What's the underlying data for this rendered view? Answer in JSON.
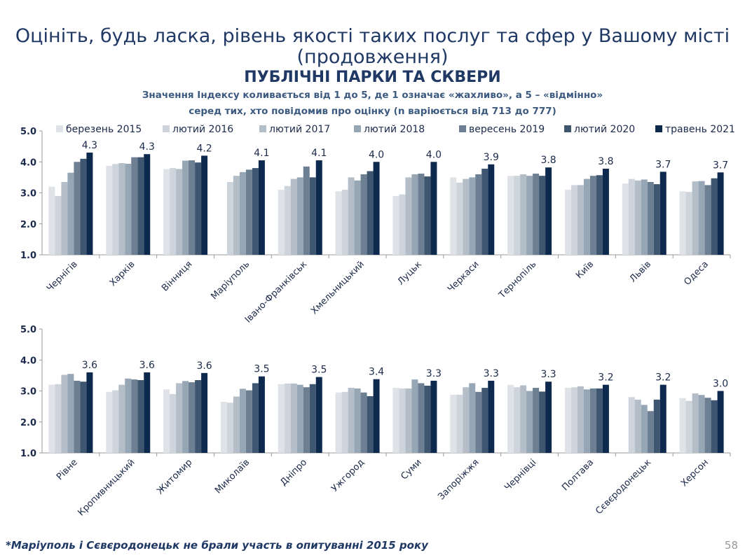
{
  "title_line1": "Оцініть, будь ласка, рівень якості таких послуг та сфер у Вашому місті",
  "title_line2": "(продовження)",
  "section_title": "ПУБЛІЧНІ ПАРКИ ТА СКВЕРИ",
  "subtitle_line1": "Значення Індексу коливається від 1 до 5, де 1 означає «жахливо», а 5 – «відмінно»",
  "subtitle_line2": "серед тих, хто повідомив про оцінку (n варіюється від 713 до 777)",
  "footnote": "*Маріуполь і Сєвєродонецьк не брали участь в опитуванні 2015 року",
  "page_number": "58",
  "chart_data": [
    {
      "type": "bar",
      "ylim": [
        1,
        5
      ],
      "yticks": [
        "1.0",
        "2.0",
        "3.0",
        "4.0",
        "5.0"
      ],
      "legend_position": "top",
      "series_names": [
        "березень 2015",
        "лютий 2016",
        "лютий 2017",
        "лютий 2018",
        "вересень 2019",
        "лютий 2020",
        "травень 2021"
      ],
      "colors": [
        "#dfe3e8",
        "#cdd4dc",
        "#b3bec9",
        "#97a6b5",
        "#6d7f93",
        "#3f5670",
        "#0d2a4e"
      ],
      "categories": [
        "Чернігів",
        "Харків",
        "Вінниця",
        "Маріуполь",
        "Івано-Франківськ",
        "Хмельницький",
        "Луцьк",
        "Черкаси",
        "Тернопіль",
        "Київ",
        "Львів",
        "Одеса"
      ],
      "labels": [
        "4.3",
        "4.3",
        "4.2",
        "4.1",
        "4.1",
        "4.0",
        "4.0",
        "3.9",
        "3.8",
        "3.8",
        "3.7",
        "3.7"
      ],
      "values": [
        [
          3.2,
          2.9,
          3.35,
          3.65,
          4.0,
          4.1,
          4.3
        ],
        [
          3.87,
          3.93,
          3.96,
          3.94,
          4.15,
          4.15,
          4.25
        ],
        [
          3.77,
          3.8,
          3.77,
          4.04,
          4.05,
          3.98,
          4.2
        ],
        [
          null,
          3.35,
          3.55,
          3.67,
          3.75,
          3.8,
          4.05
        ],
        [
          3.1,
          3.22,
          3.45,
          3.5,
          3.85,
          3.5,
          4.05
        ],
        [
          3.05,
          3.1,
          3.5,
          3.4,
          3.6,
          3.7,
          4.0
        ],
        [
          2.9,
          2.95,
          3.5,
          3.6,
          3.62,
          3.53,
          4.0
        ],
        [
          3.5,
          3.33,
          3.45,
          3.5,
          3.6,
          3.78,
          3.92
        ],
        [
          3.55,
          3.55,
          3.6,
          3.55,
          3.62,
          3.55,
          3.82
        ],
        [
          3.1,
          3.25,
          3.25,
          3.45,
          3.55,
          3.57,
          3.78
        ],
        [
          3.3,
          3.45,
          3.4,
          3.43,
          3.35,
          3.28,
          3.68
        ],
        [
          3.05,
          3.03,
          3.37,
          3.38,
          3.25,
          3.47,
          3.66
        ]
      ]
    },
    {
      "type": "bar",
      "ylim": [
        1,
        5
      ],
      "yticks": [
        "1.0",
        "2.0",
        "3.0",
        "4.0",
        "5.0"
      ],
      "categories": [
        "Рівне",
        "Кропивницький",
        "Житомир",
        "Миколаїв",
        "Дніпро",
        "Ужгород",
        "Суми",
        "Запоріжжя",
        "Чернівці",
        "Полтава",
        "Сєвєродонецьк",
        "Херсон"
      ],
      "labels": [
        "3.6",
        "3.6",
        "3.6",
        "3.5",
        "3.5",
        "3.4",
        "3.3",
        "3.3",
        "3.3",
        "3.2",
        "3.2",
        "3.0"
      ],
      "values": [
        [
          3.2,
          3.22,
          3.52,
          3.55,
          3.33,
          3.3,
          3.6
        ],
        [
          2.97,
          3.02,
          3.2,
          3.4,
          3.37,
          3.35,
          3.6
        ],
        [
          3.05,
          2.9,
          3.25,
          3.32,
          3.28,
          3.35,
          3.58
        ],
        [
          2.65,
          2.62,
          2.82,
          3.07,
          3.02,
          3.25,
          3.47
        ],
        [
          3.22,
          3.24,
          3.24,
          3.2,
          3.12,
          3.22,
          3.45
        ],
        [
          2.95,
          2.97,
          3.1,
          3.08,
          2.95,
          2.83,
          3.38
        ],
        [
          3.1,
          3.08,
          3.08,
          3.37,
          3.25,
          3.17,
          3.33
        ],
        [
          2.88,
          2.88,
          3.12,
          3.25,
          2.97,
          3.1,
          3.33
        ],
        [
          3.2,
          3.12,
          3.18,
          3.0,
          3.1,
          2.98,
          3.3
        ],
        [
          3.1,
          3.12,
          3.15,
          3.05,
          3.08,
          3.08,
          3.2
        ],
        [
          null,
          2.8,
          2.72,
          2.55,
          2.35,
          2.72,
          3.2
        ],
        [
          2.77,
          2.68,
          2.92,
          2.87,
          2.78,
          2.7,
          3.0
        ]
      ]
    }
  ]
}
